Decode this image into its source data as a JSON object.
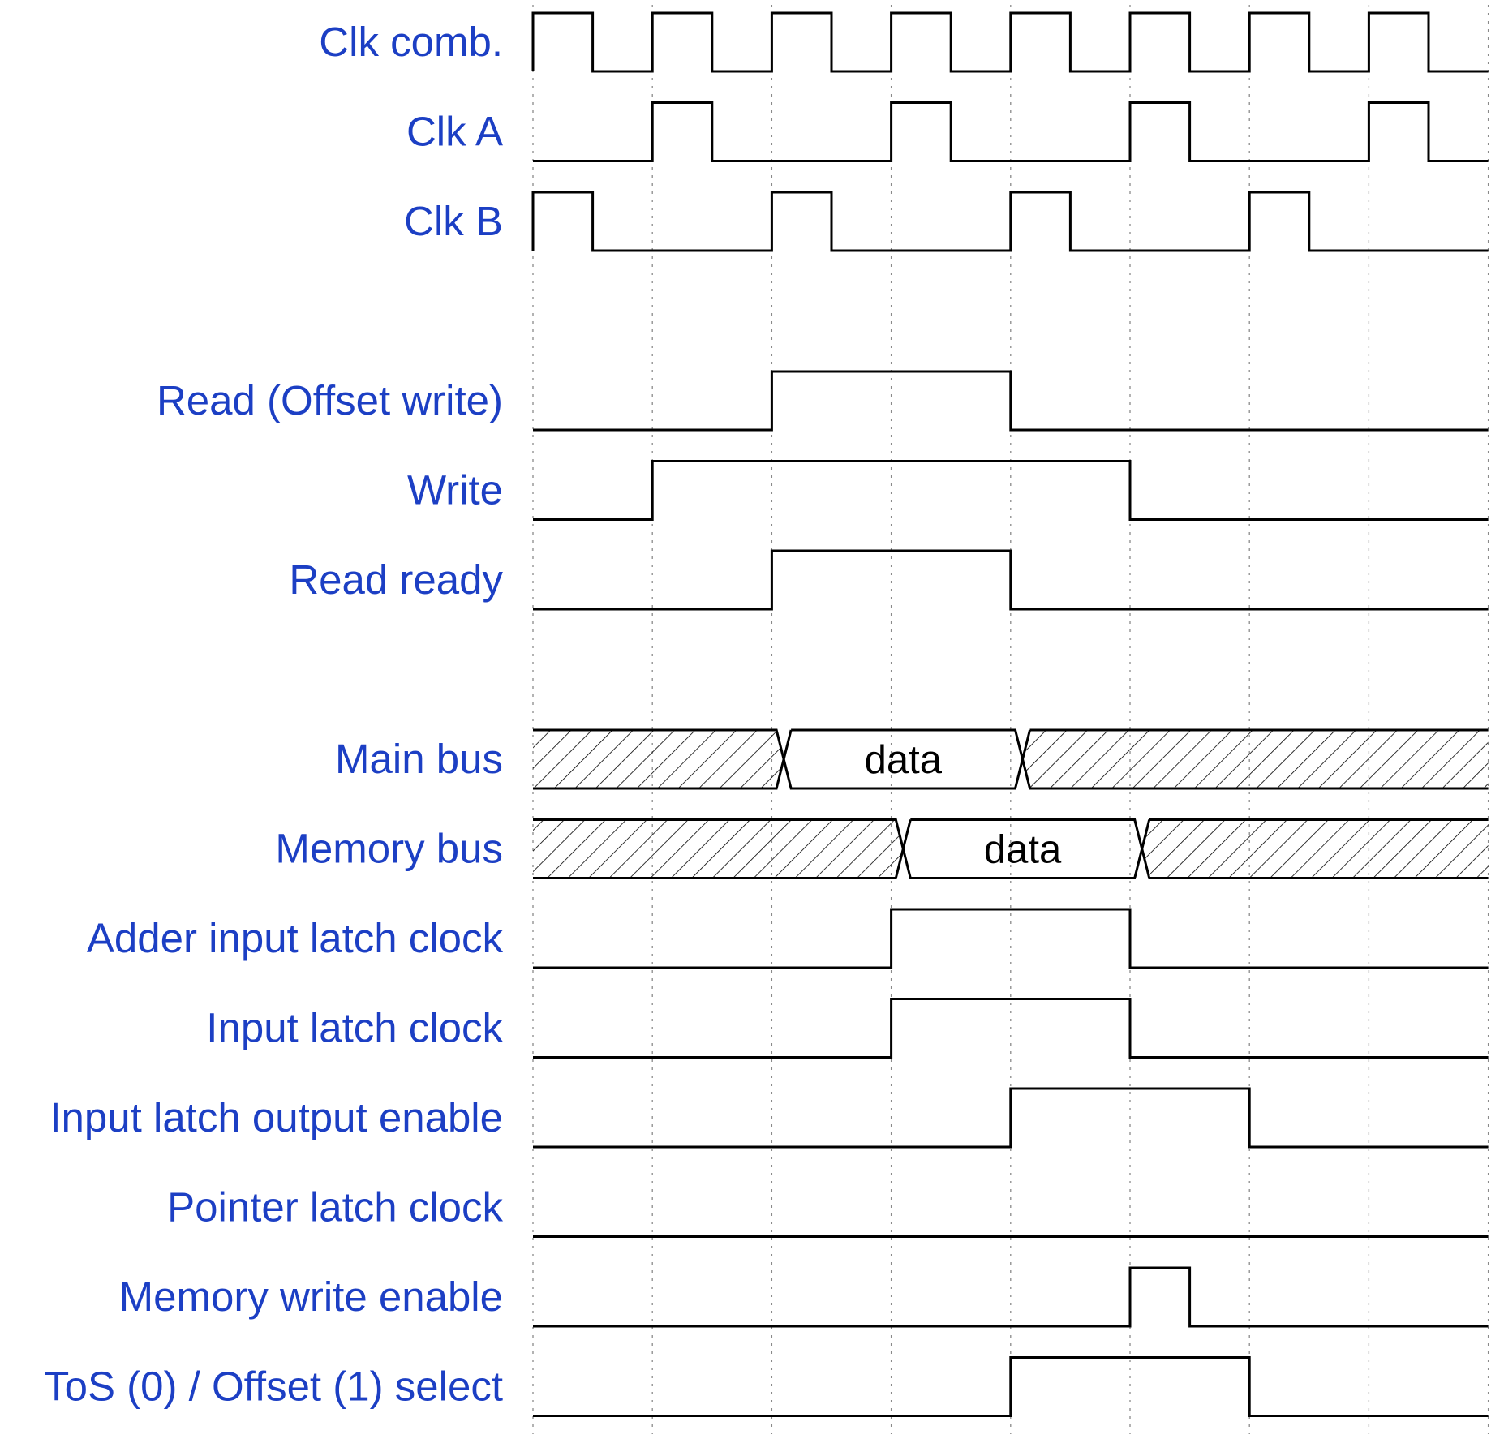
{
  "style": {
    "label_color": "#1c3fc4",
    "wave_color": "#000000",
    "grid_color": "#8a8a8a",
    "background": "#ffffff"
  },
  "timing": {
    "half_periods": 16,
    "grid_every_half_periods": 2
  },
  "signals": [
    {
      "name": "Clk comb.",
      "type": "clock",
      "levels": [
        1,
        0,
        1,
        0,
        1,
        0,
        1,
        0,
        1,
        0,
        1,
        0,
        1,
        0,
        1,
        0
      ]
    },
    {
      "name": "Clk A",
      "type": "digital",
      "levels": [
        0,
        0,
        1,
        0,
        0,
        0,
        1,
        0,
        0,
        0,
        1,
        0,
        0,
        0,
        1,
        0
      ]
    },
    {
      "name": "Clk B",
      "type": "digital",
      "levels": [
        1,
        0,
        0,
        0,
        1,
        0,
        0,
        0,
        1,
        0,
        0,
        0,
        1,
        0,
        0,
        0
      ]
    },
    {
      "name": "",
      "type": "spacer"
    },
    {
      "name": "Read (Offset write)",
      "type": "digital",
      "levels": [
        0,
        0,
        0,
        0,
        1,
        1,
        1,
        1,
        0,
        0,
        0,
        0,
        0,
        0,
        0,
        0
      ]
    },
    {
      "name": "Write",
      "type": "digital",
      "levels": [
        0,
        0,
        1,
        1,
        1,
        1,
        1,
        1,
        1,
        1,
        0,
        0,
        0,
        0,
        0,
        0
      ]
    },
    {
      "name": "Read ready",
      "type": "digital",
      "levels": [
        0,
        0,
        0,
        0,
        1,
        1,
        1,
        1,
        0,
        0,
        0,
        0,
        0,
        0,
        0,
        0
      ]
    },
    {
      "name": "",
      "type": "spacer"
    },
    {
      "name": "Main bus",
      "type": "bus",
      "segments": [
        {
          "from": 0,
          "to": 4.2,
          "kind": "undefined",
          "text": ""
        },
        {
          "from": 4.2,
          "to": 8.2,
          "kind": "value",
          "text": "data"
        },
        {
          "from": 8.2,
          "to": 16,
          "kind": "undefined",
          "text": ""
        }
      ]
    },
    {
      "name": "Memory bus",
      "type": "bus",
      "segments": [
        {
          "from": 0,
          "to": 6.2,
          "kind": "undefined",
          "text": ""
        },
        {
          "from": 6.2,
          "to": 10.2,
          "kind": "value",
          "text": "data"
        },
        {
          "from": 10.2,
          "to": 16,
          "kind": "undefined",
          "text": ""
        }
      ]
    },
    {
      "name": "Adder input latch clock",
      "type": "digital",
      "levels": [
        0,
        0,
        0,
        0,
        0,
        0,
        1,
        1,
        1,
        1,
        0,
        0,
        0,
        0,
        0,
        0
      ]
    },
    {
      "name": "Input latch clock",
      "type": "digital",
      "levels": [
        0,
        0,
        0,
        0,
        0,
        0,
        1,
        1,
        1,
        1,
        0,
        0,
        0,
        0,
        0,
        0
      ]
    },
    {
      "name": "Input latch output enable",
      "type": "digital",
      "levels": [
        0,
        0,
        0,
        0,
        0,
        0,
        0,
        0,
        1,
        1,
        1,
        1,
        0,
        0,
        0,
        0
      ]
    },
    {
      "name": "Pointer latch clock",
      "type": "digital",
      "levels": [
        0,
        0,
        0,
        0,
        0,
        0,
        0,
        0,
        0,
        0,
        0,
        0,
        0,
        0,
        0,
        0
      ]
    },
    {
      "name": "Memory write enable",
      "type": "digital",
      "levels": [
        0,
        0,
        0,
        0,
        0,
        0,
        0,
        0,
        0,
        0,
        1,
        0,
        0,
        0,
        0,
        0
      ]
    },
    {
      "name": "ToS (0) / Offset (1) select",
      "type": "digital",
      "levels": [
        0,
        0,
        0,
        0,
        0,
        0,
        0,
        0,
        1,
        1,
        1,
        1,
        0,
        0,
        0,
        0
      ]
    }
  ]
}
